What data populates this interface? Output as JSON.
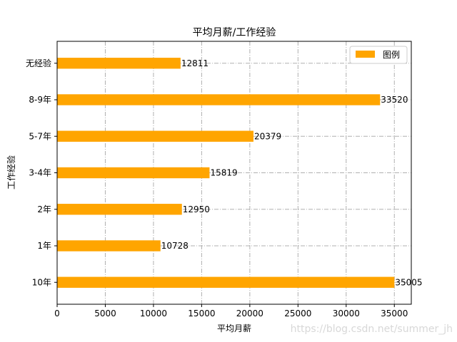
{
  "chart_data": {
    "type": "bar",
    "orientation": "horizontal",
    "title": "平均月薪/工作经验",
    "xlabel": "平均月薪",
    "ylabel": "工作经验",
    "categories": [
      "10年",
      "1年",
      "2年",
      "3-4年",
      "5-7年",
      "8-9年",
      "无经验"
    ],
    "values": [
      35005,
      10728,
      12950,
      15819,
      20379,
      33520,
      12811
    ],
    "xlim": [
      0,
      36760
    ],
    "xticks": [
      0,
      5000,
      10000,
      15000,
      20000,
      25000,
      30000,
      35000
    ],
    "grid": true,
    "bar_color": "#FFA500",
    "legend": {
      "label": "图例",
      "position": "top-right"
    }
  },
  "watermark": "https://blog.csdn.net/summer_jh"
}
